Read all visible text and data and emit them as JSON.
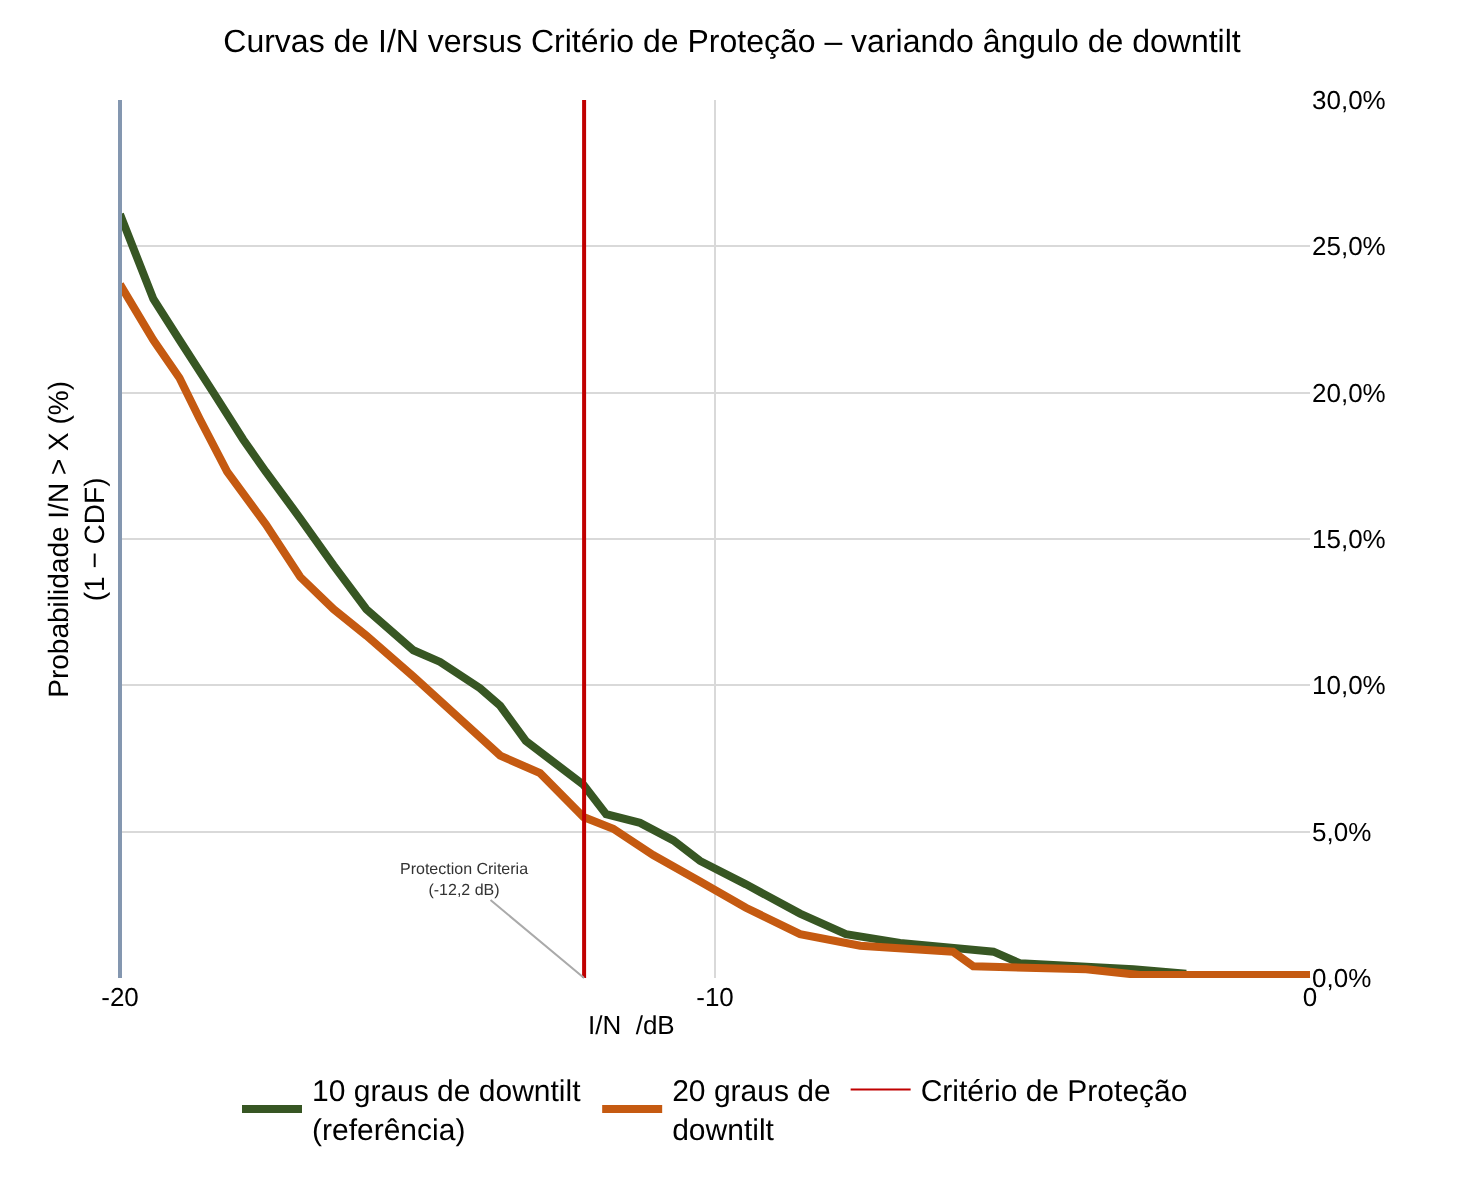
{
  "chart_data": {
    "type": "line",
    "title": "Curvas de I/N versus Critério de Proteção – variando ângulo de downtilt",
    "xlabel": "I/N  /dB",
    "ylabel": "Probabilidade I/N > X (%)\n(1 − CDF)",
    "series": [
      {
        "name": "10 graus de downtilt\n(referência)",
        "color": "#375623",
        "x": [
          -20,
          -19.44,
          -19.0,
          -18.43,
          -17.93,
          -17.55,
          -16.97,
          -16.41,
          -15.86,
          -15.07,
          -14.62,
          -13.95,
          -13.61,
          -13.18,
          -12.21,
          -11.83,
          -11.26,
          -10.7,
          -10.25,
          -9.48,
          -8.57,
          -7.8,
          -6.89,
          -5.32,
          -4.87,
          -2.97,
          -2.08
        ],
        "values": [
          26.1,
          23.2,
          21.8,
          20.0,
          18.4,
          17.3,
          15.7,
          14.1,
          12.6,
          11.2,
          10.8,
          9.9,
          9.3,
          8.1,
          6.6,
          5.6,
          5.3,
          4.7,
          4.0,
          3.2,
          2.2,
          1.5,
          1.2,
          0.9,
          0.5,
          0.3,
          0.15
        ]
      },
      {
        "name": "20 graus de\ndowntilt",
        "color": "#c55a11",
        "x": [
          -20,
          -19.44,
          -19.0,
          -18.66,
          -18.2,
          -17.55,
          -16.97,
          -16.41,
          -15.86,
          -15.07,
          -13.61,
          -12.94,
          -12.21,
          -11.71,
          -11.04,
          -10.25,
          -9.48,
          -8.57,
          -7.56,
          -6.0,
          -5.66,
          -3.76,
          -2.86,
          0
        ],
        "values": [
          23.7,
          21.8,
          20.5,
          19.1,
          17.3,
          15.5,
          13.7,
          12.6,
          11.7,
          10.3,
          7.6,
          7.0,
          5.5,
          5.1,
          4.2,
          3.3,
          2.4,
          1.5,
          1.1,
          0.9,
          0.4,
          0.3,
          0.1,
          0.1
        ]
      }
    ],
    "ref_lines": [
      {
        "axis": "x",
        "value": -12.2,
        "label": "Critério de Proteção",
        "color": "#c00000"
      }
    ],
    "annotations": [
      {
        "text": "Protection Criteria\n(-12,2 dB)",
        "x": -12.2,
        "y": 0
      }
    ],
    "xlim": [
      -20,
      0
    ],
    "xticks": [
      -20,
      -10,
      0
    ],
    "ylim": [
      0,
      30
    ],
    "yticks": [
      {
        "value": 0,
        "label": "0,0%"
      },
      {
        "value": 5,
        "label": "5,0%"
      },
      {
        "value": 10,
        "label": "10,0%"
      },
      {
        "value": 15,
        "label": "15,0%"
      },
      {
        "value": 20,
        "label": "20,0%"
      },
      {
        "value": 25,
        "label": "25,0%"
      },
      {
        "value": 30,
        "label": "30,0%"
      }
    ],
    "grid": true,
    "legend": "bottom",
    "marker": "none",
    "line_style": "solid"
  }
}
